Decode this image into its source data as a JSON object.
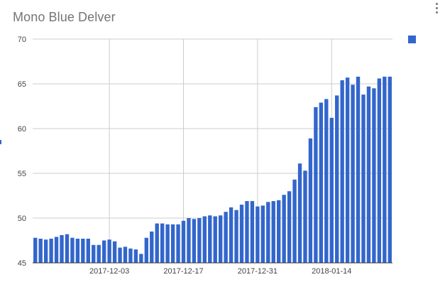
{
  "chart_data": {
    "type": "bar",
    "title": "Mono Blue Delver",
    "xlabel": "",
    "ylabel": "",
    "ylim": [
      45,
      70
    ],
    "yticks": [
      45,
      50,
      55,
      60,
      65,
      70
    ],
    "xticks": [
      "2017-12-03",
      "2017-12-17",
      "2017-12-31",
      "2018-01-14"
    ],
    "x_start": "2017-11-19",
    "grid": true,
    "legend_position": "right",
    "color": "#3366cc",
    "values": [
      47.8,
      47.7,
      47.6,
      47.7,
      47.9,
      48.1,
      48.2,
      47.8,
      47.7,
      47.7,
      47.7,
      47.0,
      47.0,
      47.5,
      47.6,
      47.4,
      46.7,
      46.8,
      46.6,
      46.5,
      46.0,
      47.8,
      48.5,
      49.4,
      49.4,
      49.3,
      49.3,
      49.3,
      49.7,
      50.0,
      49.9,
      50.0,
      50.2,
      50.3,
      50.2,
      50.3,
      50.7,
      51.2,
      50.9,
      51.5,
      51.9,
      51.9,
      51.3,
      51.4,
      51.8,
      51.9,
      52.0,
      52.6,
      53.0,
      54.3,
      56.1,
      55.3,
      58.9,
      62.4,
      62.9,
      63.3,
      61.2,
      63.7,
      65.4,
      65.7,
      64.9,
      65.8,
      63.8,
      64.7,
      64.5,
      65.6,
      65.8,
      65.8
    ]
  }
}
